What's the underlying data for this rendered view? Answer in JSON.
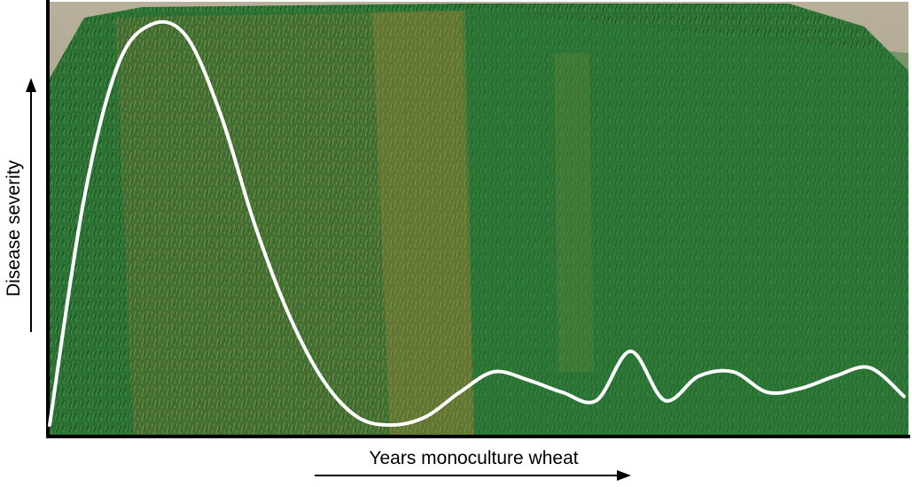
{
  "chart_data": {
    "type": "line",
    "title": "",
    "xlabel": "Years monoculture wheat",
    "ylabel": "Disease severity",
    "axis_ticks": false,
    "series": [
      {
        "values_normalized_y": [
          0.0,
          0.55,
          0.88,
          0.98,
          0.95,
          0.76,
          0.49,
          0.27,
          0.11,
          0.02,
          0.0,
          0.02,
          0.08,
          0.13,
          0.11,
          0.08,
          0.06,
          0.18,
          0.06,
          0.12,
          0.13,
          0.08,
          0.09,
          0.12,
          0.14,
          0.07
        ]
      }
    ],
    "background": "photo of wheat field plots",
    "colors": {
      "line": "#ffffff",
      "axis": "#000000",
      "grass_dark": "#1f5a2a",
      "grass_light": "#4a8a3a",
      "diseased": "#8a8a3a"
    }
  }
}
